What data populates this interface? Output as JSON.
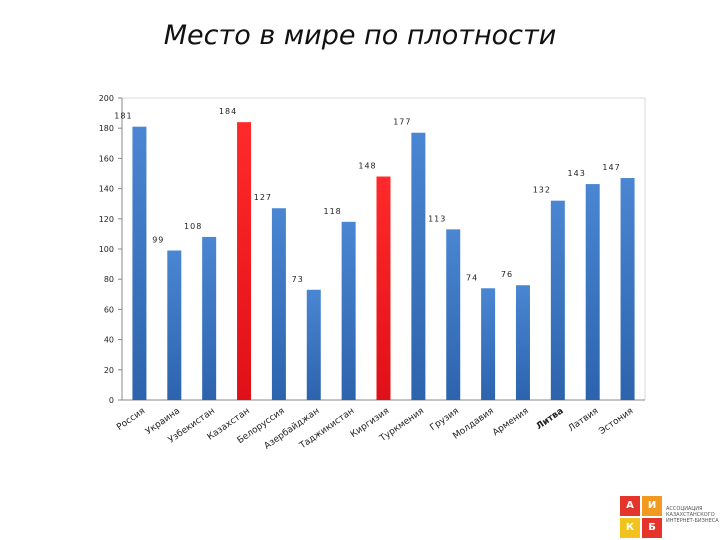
{
  "chart_data": {
    "type": "bar",
    "title": "Место в мире по плотности",
    "categories": [
      "Россия",
      "Украина",
      "Узбекистан",
      "Казахстан",
      "Белоруссия",
      "Азербайджан",
      "Таджикистан",
      "Киргизия",
      "Туркмения",
      "Грузия",
      "Молдавия",
      "Армения",
      "Литва",
      "Латвия",
      "Эстония"
    ],
    "values": [
      181,
      99,
      108,
      184,
      127,
      73,
      118,
      148,
      177,
      113,
      74,
      76,
      132,
      143,
      147
    ],
    "data_labels": [
      "181",
      "99",
      "108",
      "184",
      "127",
      "73",
      "118",
      "148",
      "177",
      "113",
      "74",
      "76",
      "132",
      "143",
      "147"
    ],
    "highlighted_categories": [
      "Казахстан",
      "Киргизия"
    ],
    "ylim": [
      0,
      200
    ],
    "yticks": [
      0,
      20,
      40,
      60,
      80,
      100,
      120,
      140,
      160,
      180,
      200
    ],
    "ytick_labels": [
      "0",
      "20",
      "40",
      "60",
      "80",
      "100",
      "120",
      "140",
      "160",
      "180",
      "200"
    ],
    "grid": false,
    "legend": "none",
    "colors": {
      "default": "#3b78c9",
      "highlight": "#ef1c23"
    }
  },
  "logo": {
    "letters": [
      "А",
      "И",
      "К",
      "Б"
    ],
    "text": "АССОЦИАЦИЯ КАЗАХСТАНСКОГО ИНТЕРНЕТ-БИЗНЕСА",
    "colors": [
      "#e4342b",
      "#f29a1f",
      "#f2c21f",
      "#e4342b"
    ]
  }
}
